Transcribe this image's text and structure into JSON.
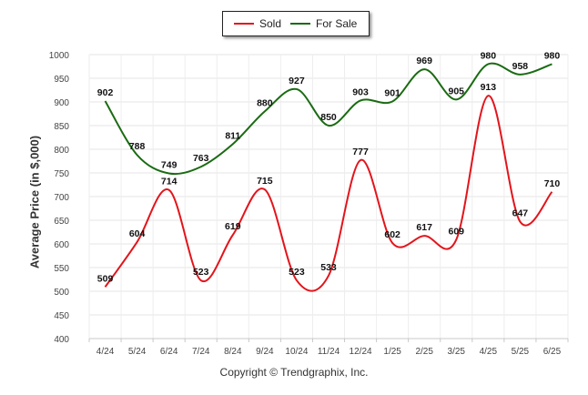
{
  "chart_data": {
    "type": "line",
    "ylabel": "Average Price (in $,000)",
    "ylim": [
      400,
      1000
    ],
    "yticks": [
      400,
      450,
      500,
      550,
      600,
      650,
      700,
      750,
      800,
      850,
      900,
      950,
      1000
    ],
    "categories": [
      "4/24",
      "5/24",
      "6/24",
      "7/24",
      "8/24",
      "9/24",
      "10/24",
      "11/24",
      "12/24",
      "1/25",
      "2/25",
      "3/25",
      "4/25",
      "5/25",
      "6/25"
    ],
    "grid": true,
    "legend_position": "top-center",
    "series": [
      {
        "name": "Sold",
        "color": "#e3141b",
        "values": [
          509,
          604,
          714,
          523,
          619,
          715,
          523,
          533,
          777,
          602,
          617,
          609,
          913,
          647,
          710
        ]
      },
      {
        "name": "For Sale",
        "color": "#1a6b12",
        "values": [
          902,
          788,
          749,
          763,
          811,
          880,
          927,
          850,
          903,
          901,
          969,
          905,
          980,
          958,
          980
        ]
      }
    ]
  },
  "footer": "Copyright © Trendgraphix, Inc."
}
